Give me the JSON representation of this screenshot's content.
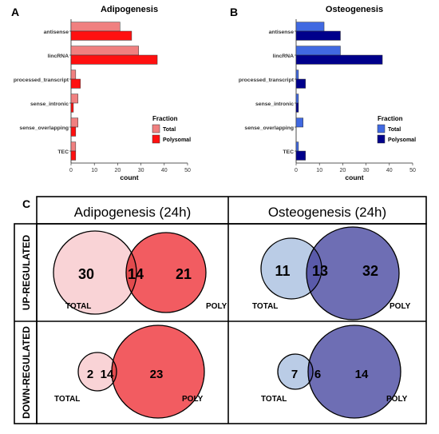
{
  "panel_letters": {
    "a": "A",
    "b": "B",
    "c": "C"
  },
  "chart_data": [
    {
      "type": "bar",
      "title": "Adipogenesis",
      "categories": [
        "antisense",
        "lincRNA",
        "processed_transcript",
        "sense_intronic",
        "sense_overlapping",
        "TEC"
      ],
      "series": [
        {
          "name": "Total",
          "values": [
            21,
            29,
            2,
            3,
            3,
            2
          ]
        },
        {
          "name": "Polysomal",
          "values": [
            26,
            37,
            4,
            1,
            2,
            2
          ]
        }
      ],
      "xlabel": "count",
      "ylabel": "",
      "xlim": [
        0,
        50
      ],
      "xticks": [
        0,
        10,
        20,
        30,
        40,
        50
      ],
      "legend_title": "Fraction",
      "legend_position": "right",
      "colors": {
        "Total": "#F08080",
        "Polysomal": "#FF1010"
      }
    },
    {
      "type": "bar",
      "title": "Osteogenesis",
      "categories": [
        "antisense",
        "lincRNA",
        "processed_transcript",
        "sense_intronic",
        "sense_overlapping",
        "TEC"
      ],
      "series": [
        {
          "name": "Total",
          "values": [
            12,
            19,
            1,
            1,
            3,
            1
          ]
        },
        {
          "name": "Polysomal",
          "values": [
            19,
            37,
            4,
            1,
            0,
            4
          ]
        }
      ],
      "xlabel": "count",
      "ylabel": "",
      "xlim": [
        0,
        50
      ],
      "xticks": [
        0,
        10,
        20,
        30,
        40,
        50
      ],
      "legend_title": "Fraction",
      "legend_position": "right",
      "colors": {
        "Total": "#4169E1",
        "Polysomal": "#00008B"
      }
    }
  ],
  "venn": {
    "column_headers": [
      "Adipogenesis (24h)",
      "Osteogenesis (24h)"
    ],
    "row_headers": [
      "UP-REGULATED",
      "DOWN-REGULATED"
    ],
    "set_labels": {
      "left": "TOTAL",
      "right": "POLY"
    },
    "cells": [
      {
        "condition": "Adipogenesis (24h)",
        "direction": "UP-REGULATED",
        "only_total": 30,
        "both": 14,
        "only_poly": 21,
        "color_total": "#F9D3D6",
        "color_poly": "#F25C61",
        "color_overlap": "#E24A4D"
      },
      {
        "condition": "Osteogenesis (24h)",
        "direction": "UP-REGULATED",
        "only_total": 11,
        "both": 13,
        "only_poly": 32,
        "color_total": "#BACCE6",
        "color_poly": "#6E6EB4",
        "color_overlap": "#5A5AAA"
      },
      {
        "condition": "Adipogenesis (24h)",
        "direction": "DOWN-REGULATED",
        "only_total": 2,
        "both": 14,
        "only_poly": 23,
        "color_total": "#F9D3D6",
        "color_poly": "#F25C61",
        "color_overlap": "#E24A4D"
      },
      {
        "condition": "Osteogenesis (24h)",
        "direction": "DOWN-REGULATED",
        "only_total": 7,
        "both": 6,
        "only_poly": 14,
        "color_total": "#BACCE6",
        "color_poly": "#6E6EB4",
        "color_overlap": "#5A5AAA"
      }
    ]
  }
}
